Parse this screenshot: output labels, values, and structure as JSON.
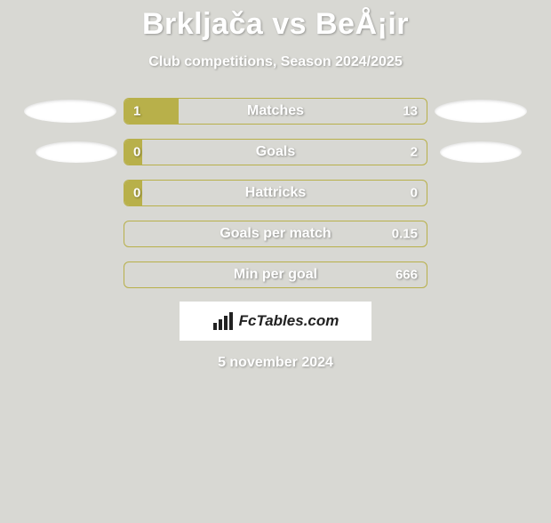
{
  "title": "Brkljača vs BeÅ¡ir",
  "subtitle": "Club competitions, Season 2024/2025",
  "date": "5 november 2024",
  "attribution": "FcTables.com",
  "colors": {
    "page_bg": "#d8d8d3",
    "bar_fill": "#b8b04a",
    "bar_border": "#b8b04a",
    "text_white": "#ffffff"
  },
  "rows": [
    {
      "label": "Matches",
      "left_value": "1",
      "right_value": "13",
      "fill_pct": 18,
      "show_avatar_left": true,
      "show_avatar_right": true,
      "avatar_variant": 1
    },
    {
      "label": "Goals",
      "left_value": "0",
      "right_value": "2",
      "fill_pct": 6,
      "show_avatar_left": true,
      "show_avatar_right": true,
      "avatar_variant": 2
    },
    {
      "label": "Hattricks",
      "left_value": "0",
      "right_value": "0",
      "fill_pct": 6,
      "show_avatar_left": false,
      "show_avatar_right": false,
      "avatar_variant": 0
    },
    {
      "label": "Goals per match",
      "left_value": "",
      "right_value": "0.15",
      "fill_pct": 0,
      "show_avatar_left": false,
      "show_avatar_right": false,
      "avatar_variant": 0
    },
    {
      "label": "Min per goal",
      "left_value": "",
      "right_value": "666",
      "fill_pct": 0,
      "show_avatar_left": false,
      "show_avatar_right": false,
      "avatar_variant": 0
    }
  ]
}
